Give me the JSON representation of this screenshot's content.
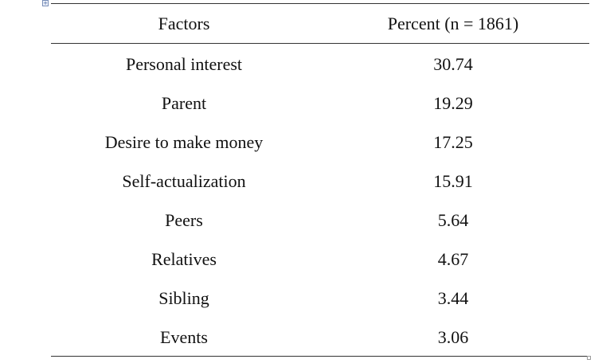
{
  "table": {
    "anchor_icon": "table-move-handle-icon",
    "headers": {
      "factor": "Factors",
      "value": "Percent (n = 1861)"
    },
    "rows": [
      {
        "factor": "Personal interest",
        "value": "30.74"
      },
      {
        "factor": "Parent",
        "value": "19.29"
      },
      {
        "factor": "Desire to make money",
        "value": "17.25"
      },
      {
        "factor": "Self-actualization",
        "value": "15.91"
      },
      {
        "factor": "Peers",
        "value": "5.64"
      },
      {
        "factor": "Relatives",
        "value": "4.67"
      },
      {
        "factor": "Sibling",
        "value": "3.44"
      },
      {
        "factor": "Events",
        "value": "3.06"
      }
    ]
  }
}
